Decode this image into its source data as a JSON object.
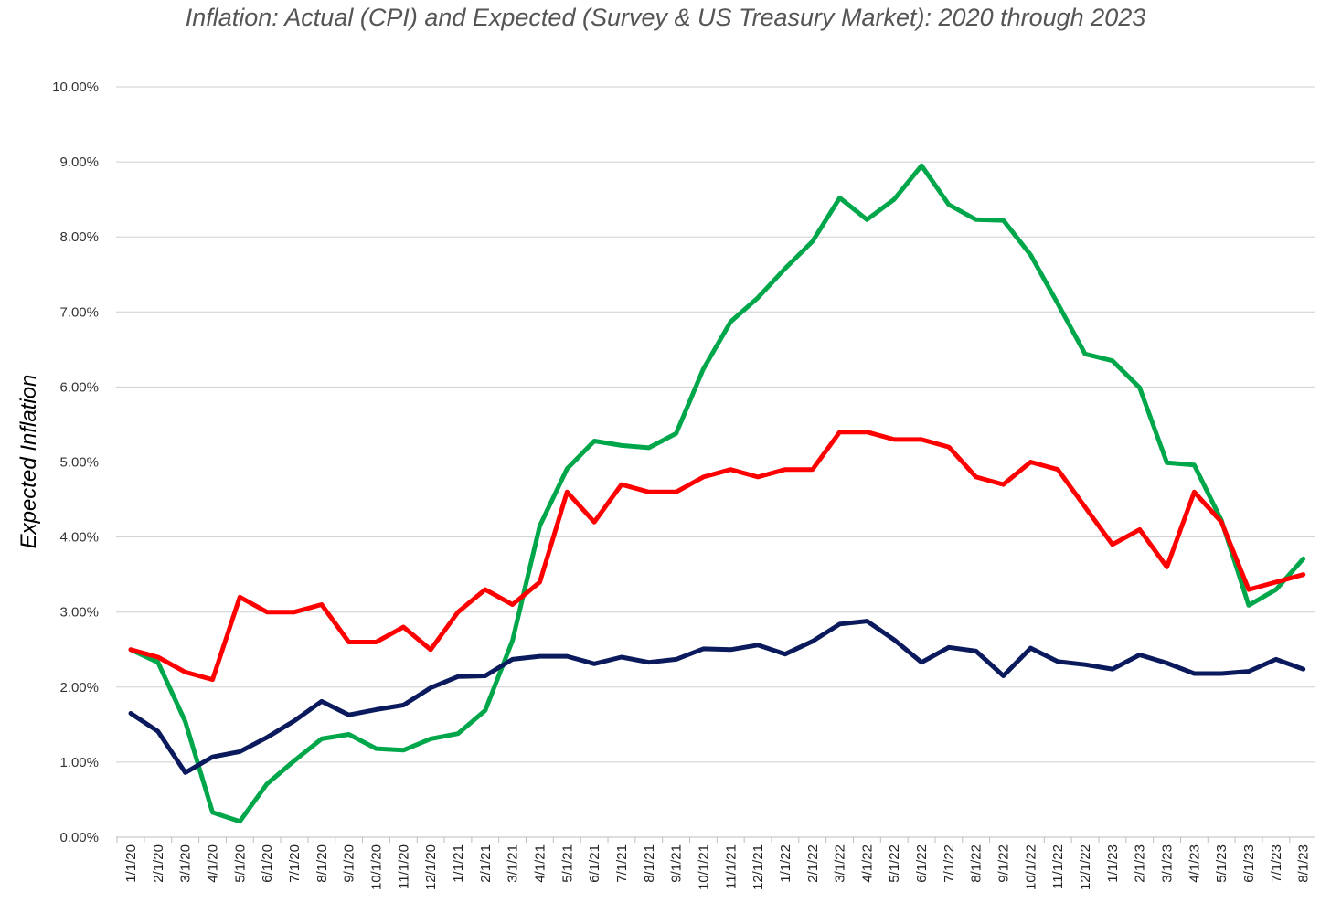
{
  "chart_data": {
    "type": "line",
    "title": "Inflation: Actual (CPI) and Expected (Survey & US Treasury Market): 2020 through 2023",
    "xlabel": "",
    "ylabel": "Expected Inflation",
    "ylim": [
      0,
      10
    ],
    "y_ticks": [
      "0.00%",
      "1.00%",
      "2.00%",
      "3.00%",
      "4.00%",
      "5.00%",
      "6.00%",
      "7.00%",
      "8.00%",
      "9.00%",
      "10.00%"
    ],
    "grid": "horizontal",
    "legend": "none",
    "categories": [
      "1/1/20",
      "2/1/20",
      "3/1/20",
      "4/1/20",
      "5/1/20",
      "6/1/20",
      "7/1/20",
      "8/1/20",
      "9/1/20",
      "10/1/20",
      "11/1/20",
      "12/1/20",
      "1/1/21",
      "2/1/21",
      "3/1/21",
      "4/1/21",
      "5/1/21",
      "6/1/21",
      "7/1/21",
      "8/1/21",
      "9/1/21",
      "10/1/21",
      "11/1/21",
      "12/1/21",
      "1/1/22",
      "2/1/22",
      "3/1/22",
      "4/1/22",
      "5/1/22",
      "6/1/22",
      "7/1/22",
      "8/1/22",
      "9/1/22",
      "10/1/22",
      "11/1/22",
      "12/1/22",
      "1/1/23",
      "2/1/23",
      "3/1/23",
      "4/1/23",
      "5/1/23",
      "6/1/23",
      "7/1/23",
      "8/1/23"
    ],
    "series": [
      {
        "color": "#00a74a",
        "values": [
          2.5,
          2.33,
          1.54,
          0.33,
          0.21,
          0.71,
          1.02,
          1.31,
          1.37,
          1.18,
          1.16,
          1.31,
          1.38,
          1.69,
          2.62,
          4.15,
          4.91,
          5.28,
          5.22,
          5.19,
          5.38,
          6.24,
          6.87,
          7.19,
          7.58,
          7.94,
          8.52,
          8.23,
          8.5,
          8.95,
          8.43,
          8.23,
          8.22,
          7.76,
          7.11,
          6.44,
          6.35,
          5.99,
          4.99,
          4.96,
          4.22,
          3.09,
          3.3,
          3.71
        ]
      },
      {
        "color": "#ff0000",
        "values": [
          2.5,
          2.4,
          2.2,
          2.1,
          3.2,
          3.0,
          3.0,
          3.1,
          2.6,
          2.6,
          2.8,
          2.5,
          3.0,
          3.3,
          3.1,
          3.4,
          4.6,
          4.2,
          4.7,
          4.6,
          4.6,
          4.8,
          4.9,
          4.8,
          4.9,
          4.9,
          5.4,
          5.4,
          5.3,
          5.3,
          5.2,
          4.8,
          4.7,
          5.0,
          4.9,
          4.4,
          3.9,
          4.1,
          3.6,
          4.6,
          4.2,
          3.3,
          3.4,
          3.5
        ]
      },
      {
        "color": "#0a1a5c",
        "values": [
          1.65,
          1.41,
          0.86,
          1.07,
          1.14,
          1.33,
          1.55,
          1.81,
          1.63,
          1.7,
          1.76,
          1.99,
          2.14,
          2.15,
          2.37,
          2.41,
          2.41,
          2.31,
          2.4,
          2.33,
          2.37,
          2.51,
          2.5,
          2.56,
          2.44,
          2.61,
          2.84,
          2.88,
          2.63,
          2.33,
          2.53,
          2.48,
          2.15,
          2.52,
          2.34,
          2.3,
          2.24,
          2.43,
          2.32,
          2.18,
          2.18,
          2.21,
          2.37,
          2.24
        ]
      }
    ]
  }
}
